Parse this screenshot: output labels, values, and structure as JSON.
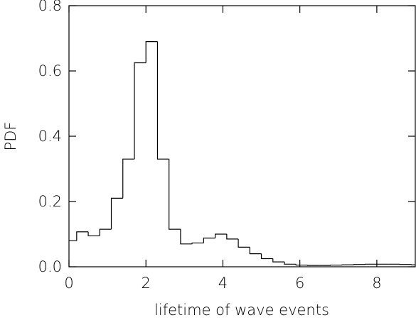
{
  "chart_data": {
    "type": "histogram",
    "xlabel": "lifetime of wave events",
    "ylabel": "PDF",
    "bins": [
      -0.1,
      0.2,
      0.5,
      0.8,
      1.1,
      1.4,
      1.7,
      2.0,
      2.3,
      2.6,
      2.9,
      3.2,
      3.5,
      3.8,
      4.1,
      4.4,
      4.7,
      5.0,
      5.3,
      5.6,
      5.9,
      6.2,
      6.5,
      6.8,
      7.1,
      7.4,
      7.7,
      8.0,
      8.3,
      8.6,
      8.9,
      9.2
    ],
    "values": [
      0.08,
      0.107,
      0.095,
      0.115,
      0.21,
      0.33,
      0.625,
      0.69,
      0.33,
      0.115,
      0.07,
      0.073,
      0.088,
      0.1,
      0.085,
      0.06,
      0.04,
      0.025,
      0.015,
      0.008,
      0.005,
      0.004,
      0.004,
      0.005,
      0.006,
      0.007,
      0.008,
      0.008,
      0.008,
      0.007,
      0.006
    ],
    "color": "#000000",
    "xlim": [
      0,
      9
    ],
    "ylim": [
      0,
      0.8
    ],
    "xticks": [
      0,
      2,
      4,
      6,
      8
    ],
    "yticks": [
      {
        "value": 0,
        "label": "0.0"
      },
      0.2,
      0.4,
      0.6,
      0.8
    ]
  }
}
